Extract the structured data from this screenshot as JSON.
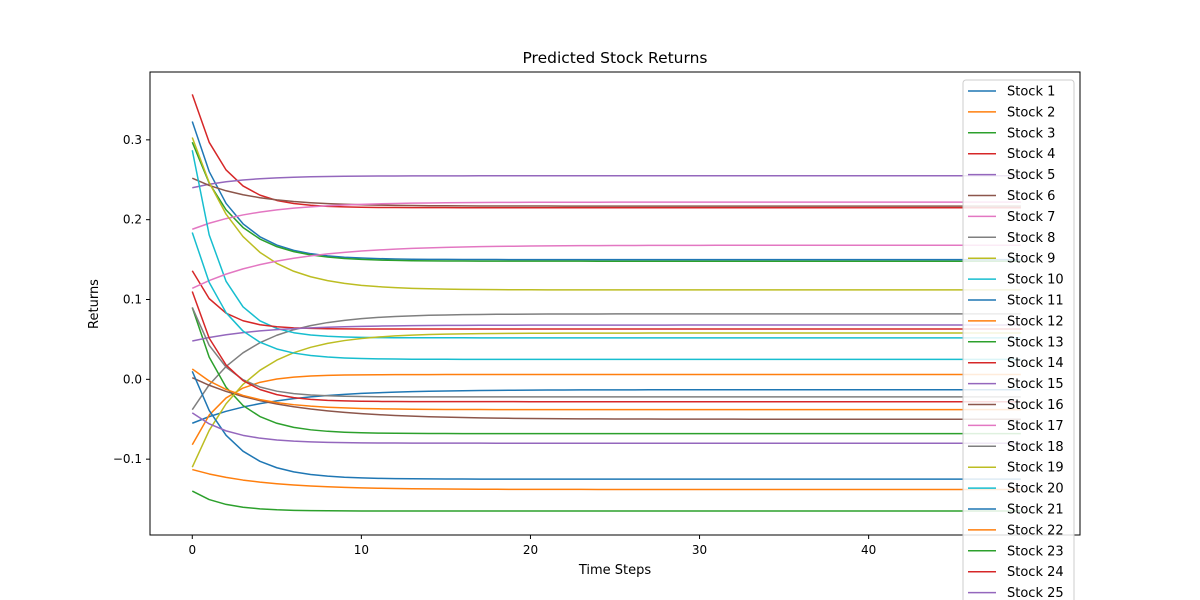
{
  "chart_data": {
    "type": "line",
    "title": "Predicted Stock Returns",
    "xlabel": "Time Steps",
    "ylabel": "Returns",
    "xlim": [
      -2.5,
      52.5
    ],
    "ylim": [
      -0.195,
      0.385
    ],
    "xticks": [
      0,
      10,
      20,
      30,
      40
    ],
    "yticks": [
      -0.1,
      0.0,
      0.1,
      0.2,
      0.3
    ],
    "grid": false,
    "legend_position": "upper-right",
    "n_steps": 50,
    "series": [
      {
        "name": "Stock 1",
        "color": "#1f77b4",
        "start": 0.323,
        "end": 0.15,
        "rate": 0.45
      },
      {
        "name": "Stock 2",
        "color": "#ff7f0e",
        "start": -0.113,
        "end": -0.138,
        "rate": 0.25
      },
      {
        "name": "Stock 3",
        "color": "#2ca02c",
        "start": 0.297,
        "end": 0.148,
        "rate": 0.42
      },
      {
        "name": "Stock 4",
        "color": "#d62728",
        "start": 0.357,
        "end": 0.215,
        "rate": 0.55
      },
      {
        "name": "Stock 5",
        "color": "#9467bd",
        "start": 0.24,
        "end": 0.255,
        "rate": 0.35
      },
      {
        "name": "Stock 6",
        "color": "#8c564b",
        "start": 0.252,
        "end": 0.217,
        "rate": 0.3
      },
      {
        "name": "Stock 7",
        "color": "#e377c2",
        "start": 0.188,
        "end": 0.222,
        "rate": 0.25
      },
      {
        "name": "Stock 8",
        "color": "#7f7f7f",
        "start": -0.038,
        "end": 0.082,
        "rate": 0.3
      },
      {
        "name": "Stock 9",
        "color": "#bcbd22",
        "start": 0.303,
        "end": 0.112,
        "rate": 0.35
      },
      {
        "name": "Stock 10",
        "color": "#17becf",
        "start": 0.287,
        "end": 0.052,
        "rate": 0.6
      },
      {
        "name": "Stock 11",
        "color": "#1f77b4",
        "start": -0.055,
        "end": -0.013,
        "rate": 0.22
      },
      {
        "name": "Stock 12",
        "color": "#ff7f0e",
        "start": -0.082,
        "end": 0.006,
        "rate": 0.55
      },
      {
        "name": "Stock 13",
        "color": "#2ca02c",
        "start": 0.09,
        "end": -0.068,
        "rate": 0.5
      },
      {
        "name": "Stock 14",
        "color": "#d62728",
        "start": 0.136,
        "end": 0.063,
        "rate": 0.65
      },
      {
        "name": "Stock 15",
        "color": "#9467bd",
        "start": 0.048,
        "end": 0.068,
        "rate": 0.25
      },
      {
        "name": "Stock 16",
        "color": "#8c564b",
        "start": 0.002,
        "end": -0.05,
        "rate": 0.2
      },
      {
        "name": "Stock 17",
        "color": "#e377c2",
        "start": 0.114,
        "end": 0.168,
        "rate": 0.2
      },
      {
        "name": "Stock 18",
        "color": "#7f7f7f",
        "start": 0.09,
        "end": -0.022,
        "rate": 0.55
      },
      {
        "name": "Stock 19",
        "color": "#bcbd22",
        "start": -0.11,
        "end": 0.058,
        "rate": 0.32
      },
      {
        "name": "Stock 20",
        "color": "#17becf",
        "start": 0.184,
        "end": 0.025,
        "rate": 0.5
      },
      {
        "name": "Stock 21",
        "color": "#1f77b4",
        "start": 0.01,
        "end": -0.125,
        "rate": 0.45
      },
      {
        "name": "Stock 22",
        "color": "#ff7f0e",
        "start": 0.013,
        "end": -0.038,
        "rate": 0.35
      },
      {
        "name": "Stock 23",
        "color": "#2ca02c",
        "start": -0.14,
        "end": -0.165,
        "rate": 0.55
      },
      {
        "name": "Stock 24",
        "color": "#d62728",
        "start": 0.11,
        "end": -0.028,
        "rate": 0.55
      },
      {
        "name": "Stock 25",
        "color": "#9467bd",
        "start": -0.042,
        "end": -0.08,
        "rate": 0.45
      }
    ]
  }
}
